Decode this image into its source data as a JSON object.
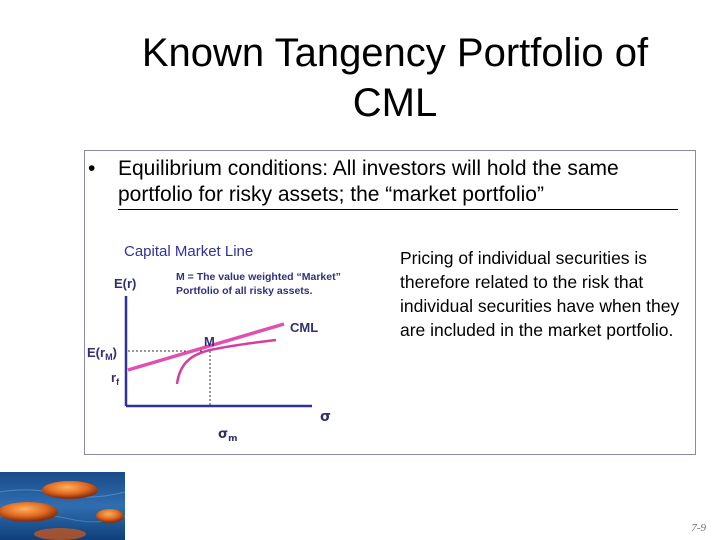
{
  "slide": {
    "title_line1": "Known Tangency Portfolio of",
    "title_line2": "CML",
    "bullet_symbol": "•",
    "bullet_text": "Equilibrium conditions: All investors will hold the same portfolio for risky assets; the “market portfolio”",
    "side_text": "Pricing of individual securities is therefore related to the risk that individual securities have when they are included in the market portfolio.",
    "slide_number": "7-9"
  },
  "diagram": {
    "heading": "Capital Market Line",
    "annotation_line1": "M = The value weighted “Market”",
    "annotation_line2": "Portfolio of all risky assets.",
    "y_axis_label": "E(r)",
    "x_axis_label": "σ",
    "point_label": "M",
    "line_label": "CML",
    "erm_label_main": "E(r",
    "erm_label_sub": "M",
    "erm_label_close": ")",
    "rf_label_main": "r",
    "rf_label_sub": "f",
    "sigma_m_main": "σ",
    "sigma_m_sub": "m",
    "colors": {
      "heading": "#3030a0",
      "axis": "#3030a0",
      "cml": "#e050b0",
      "frontier": "#d040a0"
    }
  },
  "decor": {
    "corner_image": "stones-on-water-image"
  }
}
